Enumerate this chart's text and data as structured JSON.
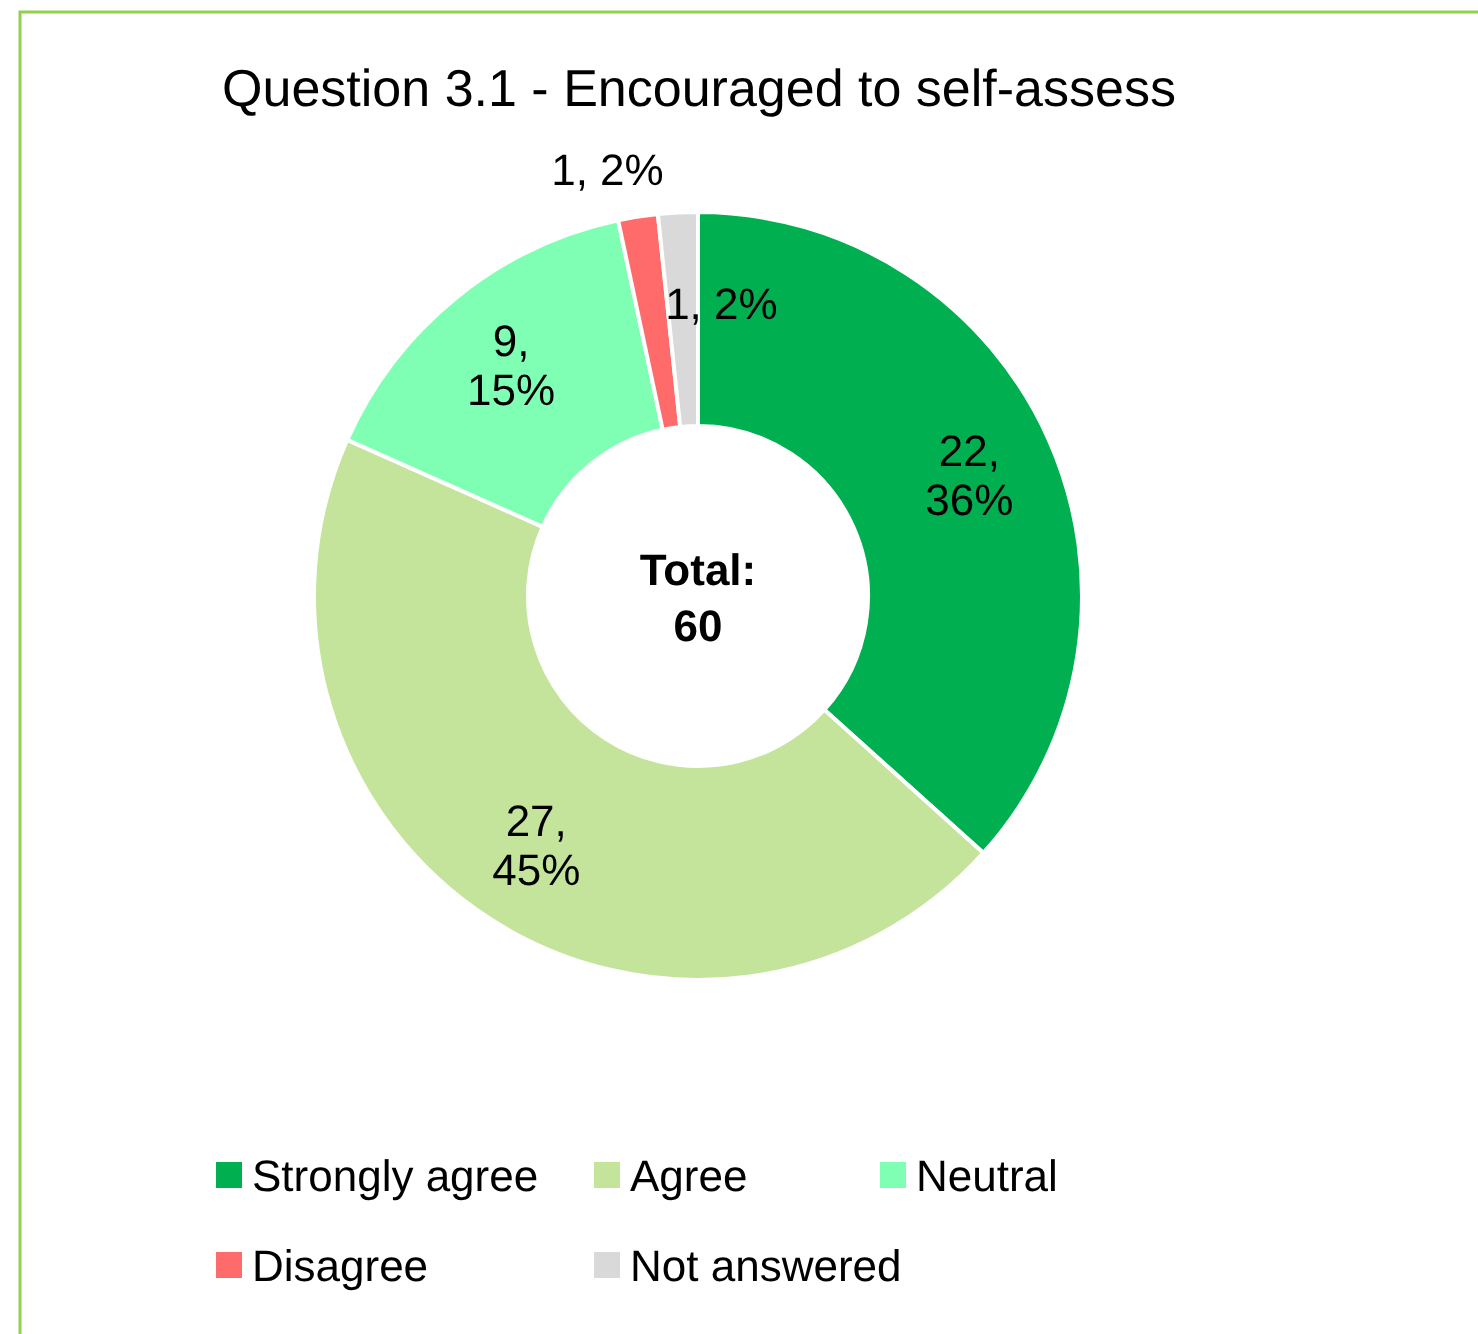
{
  "chart_data": {
    "type": "donut",
    "title": "Question 3.1 - Encouraged to self-assess",
    "categories": [
      "Strongly agree",
      "Agree",
      "Neutral",
      "Disagree",
      "Not answered"
    ],
    "values": [
      22,
      27,
      9,
      1,
      1
    ],
    "colors": [
      "#00b050",
      "#c4e39b",
      "#7fffb4",
      "#ff6b6b",
      "#d9d9d9"
    ],
    "value_labels": [
      "22, 36%",
      "27, 45%",
      "9, 15%",
      "1, 2%",
      "1, 2%"
    ],
    "annotations": [
      "Total: 60"
    ],
    "legend": "bottom"
  }
}
